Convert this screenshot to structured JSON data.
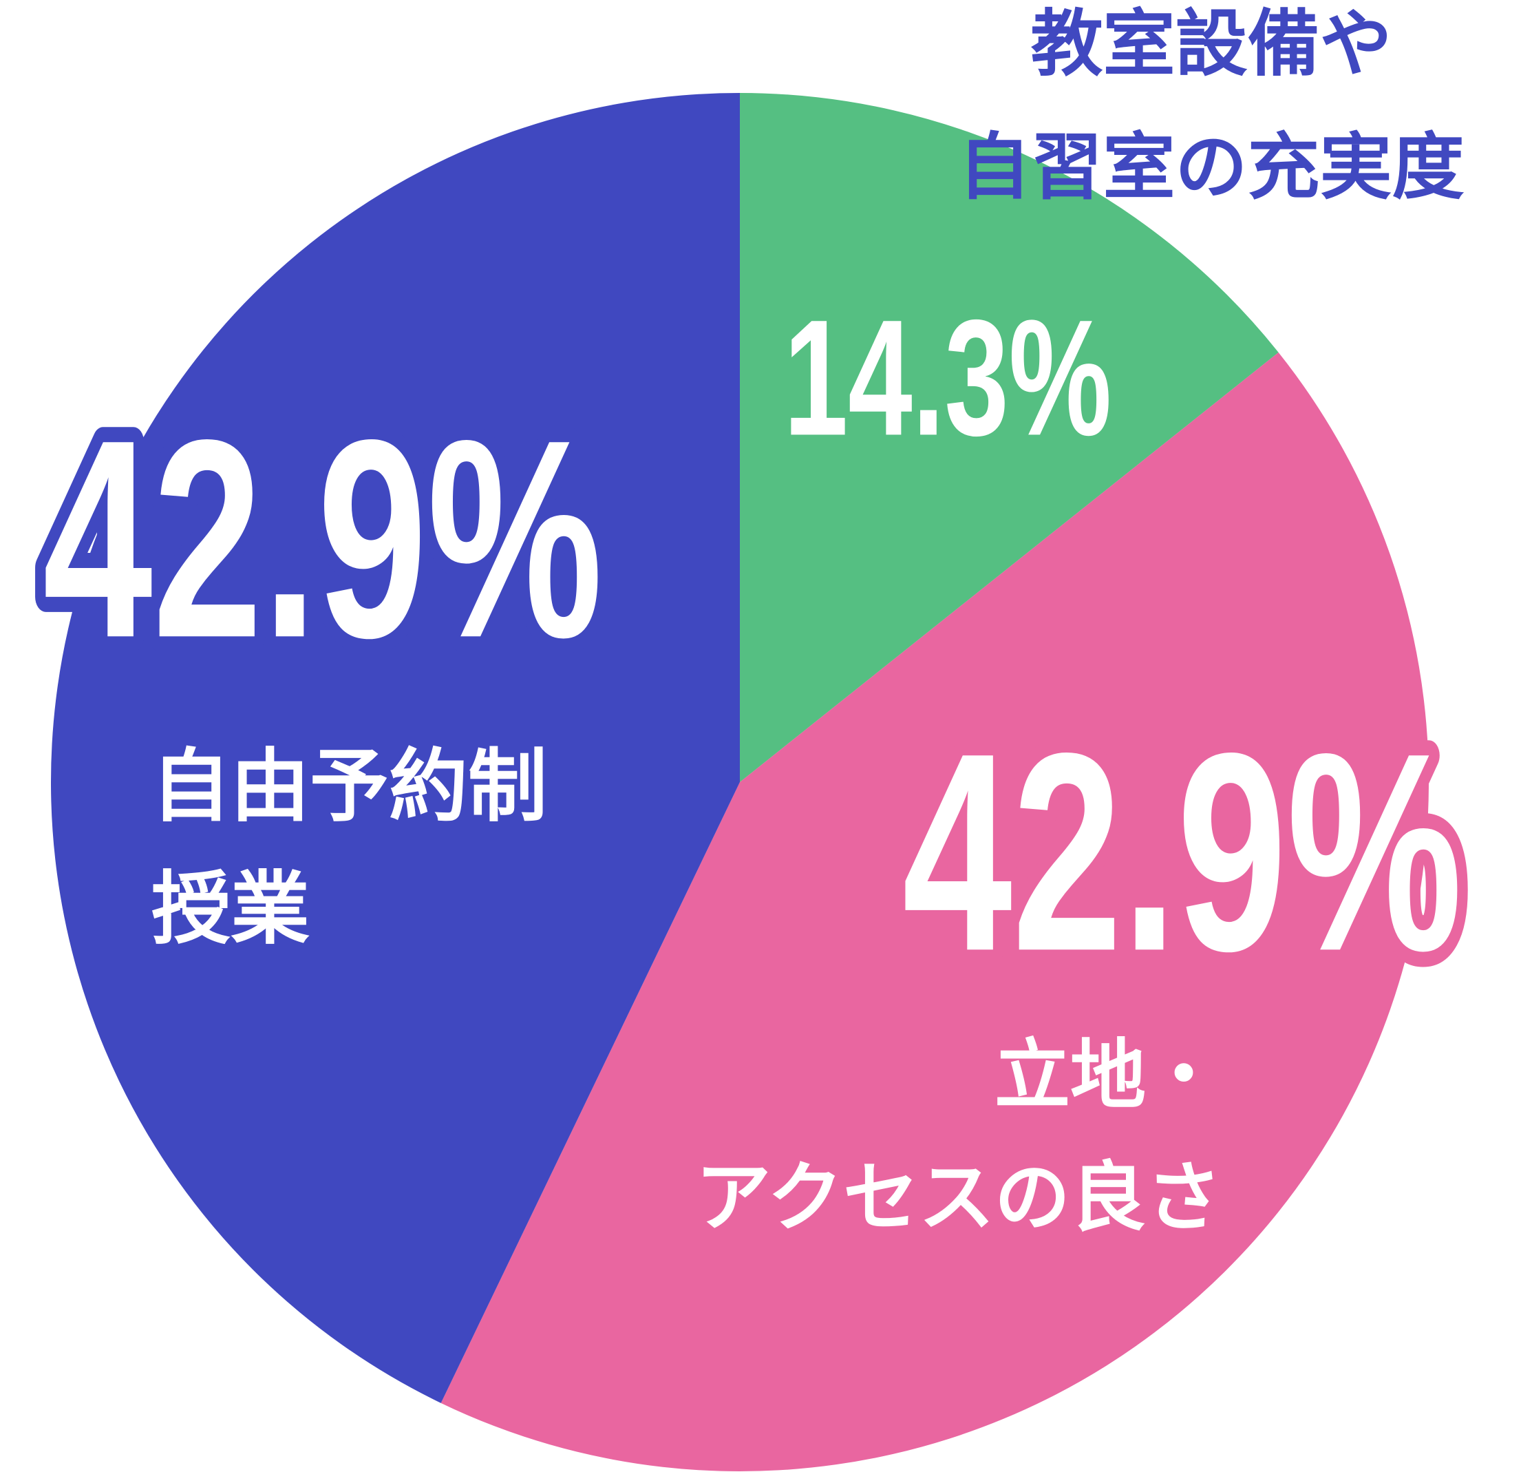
{
  "chart_data": {
    "type": "pie",
    "categories": [
      [
        "教室設備や",
        "自習室の充実度"
      ],
      [
        "立地・",
        "アクセスの良さ"
      ],
      [
        "自由予約制",
        "授業"
      ]
    ],
    "values": [
      14.3,
      42.9,
      42.9
    ],
    "value_labels": [
      "14.3%",
      "42.9%",
      "42.9%"
    ],
    "colors": [
      "#55bf82",
      "#e966a0",
      "#4048c0"
    ]
  }
}
